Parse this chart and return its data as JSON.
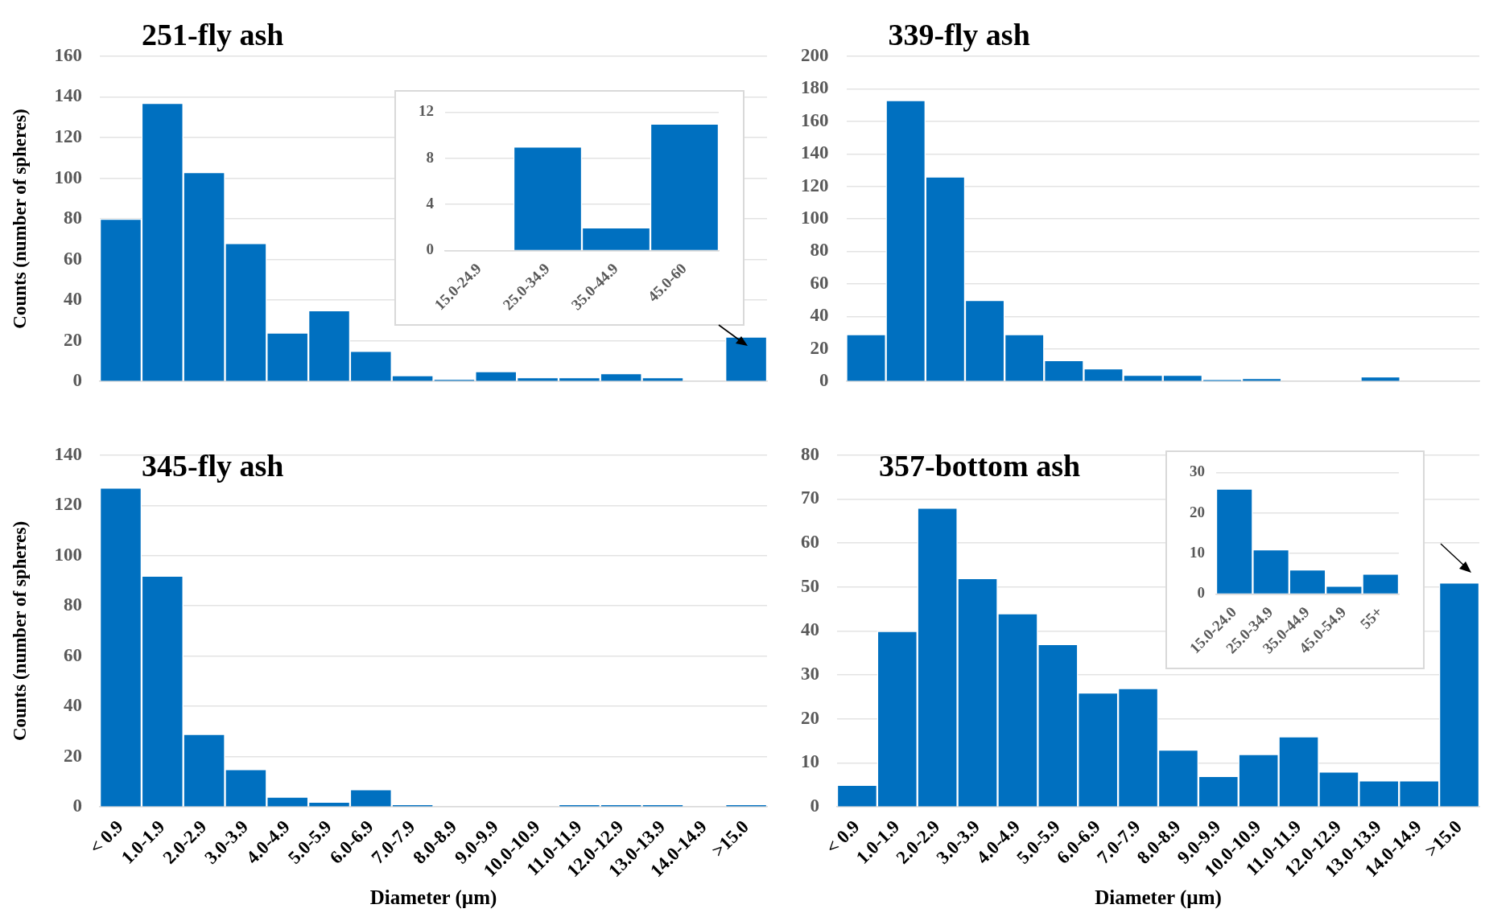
{
  "chart_data": [
    {
      "type": "bar",
      "title": "251-fly ash",
      "ylabel": "Counts (number of spheres)",
      "categories": [
        null,
        null,
        null,
        null,
        null,
        null,
        null,
        null,
        null,
        null,
        null,
        null,
        null,
        null,
        null,
        null
      ],
      "values": [
        80,
        137,
        103,
        68,
        24,
        35,
        15,
        3,
        1,
        5,
        2,
        2,
        4,
        2,
        0,
        22
      ],
      "color": "#0070c0",
      "ylim": [
        0,
        160
      ],
      "yticks": [
        0,
        20,
        40,
        60,
        80,
        100,
        120,
        140,
        160
      ],
      "grid": "y",
      "tick_labels": "y"
    },
    {
      "type": "bar",
      "categories": [
        "15.0-24.9",
        "25.0-34.9",
        "35.0-44.9",
        "45.0-60"
      ],
      "values": [
        0,
        9,
        2,
        11
      ],
      "color": "#0070c0",
      "ylim": [
        0,
        12
      ],
      "yticks": [
        0,
        4,
        8,
        12
      ],
      "grid": "y"
    },
    {
      "type": "bar",
      "title": "339-fly ash",
      "categories": [
        null,
        null,
        null,
        null,
        null,
        null,
        null,
        null,
        null,
        null,
        null,
        null,
        null,
        null,
        null,
        null
      ],
      "values": [
        29,
        173,
        126,
        50,
        29,
        13,
        8,
        4,
        4,
        1,
        2,
        0,
        0,
        3,
        0,
        null
      ],
      "color": "#0070c0",
      "ylim": [
        0,
        200
      ],
      "yticks": [
        0,
        20,
        40,
        60,
        80,
        100,
        120,
        140,
        160,
        180,
        200
      ],
      "grid": "y",
      "tick_labels": "y"
    },
    {
      "type": "bar",
      "title": "345-fly ash",
      "xlabel": "Diameter (µm)",
      "ylabel": "Counts (number of spheres)",
      "categories": [
        "< 0.9",
        "1.0-1.9",
        "2.0-2.9",
        "3.0-3.9",
        "4.0-4.9",
        "5.0-5.9",
        "6.0-6.9",
        "7.0-7.9",
        "8.0-8.9",
        "9.0-9.9",
        "10.0-10.9",
        "11.0-11.9",
        "12.0-12.9",
        "13.0-13.9",
        "14.0-14.9",
        ">15.0"
      ],
      "values": [
        127,
        92,
        29,
        15,
        4,
        2,
        7,
        1,
        0,
        0,
        0,
        1,
        1,
        1,
        0,
        1
      ],
      "color": "#0070c0",
      "ylim": [
        0,
        140
      ],
      "yticks": [
        0,
        20,
        40,
        60,
        80,
        100,
        120,
        140
      ],
      "grid": "y"
    },
    {
      "type": "bar",
      "title": "357-bottom ash",
      "xlabel": "Diameter (µm)",
      "categories": [
        "< 0.9",
        "1.0-1.9",
        "2.0-2.9",
        "3.0-3.9",
        "4.0-4.9",
        "5.0-5.9",
        "6.0-6.9",
        "7.0-7.9",
        "8.0-8.9",
        "9.0-9.9",
        "10.0-10.9",
        "11.0-11.9",
        "12.0-12.9",
        "13.0-13.9",
        "14.0-14.9",
        ">15.0"
      ],
      "values": [
        5,
        40,
        68,
        52,
        44,
        37,
        26,
        27,
        13,
        7,
        12,
        16,
        8,
        6,
        6,
        51
      ],
      "color": "#0070c0",
      "ylim": [
        0,
        80
      ],
      "yticks": [
        0,
        10,
        20,
        30,
        40,
        50,
        60,
        70,
        80
      ],
      "grid": "y"
    },
    {
      "type": "bar",
      "categories": [
        "15.0-24.0",
        "25.0-34.9",
        "35.0-44.9",
        "45.0-54.9",
        "55+"
      ],
      "values": [
        26,
        11,
        6,
        2,
        5
      ],
      "color": "#0070c0",
      "ylim": [
        0,
        30
      ],
      "yticks": [
        0,
        10,
        20,
        30
      ],
      "grid": "y"
    }
  ]
}
